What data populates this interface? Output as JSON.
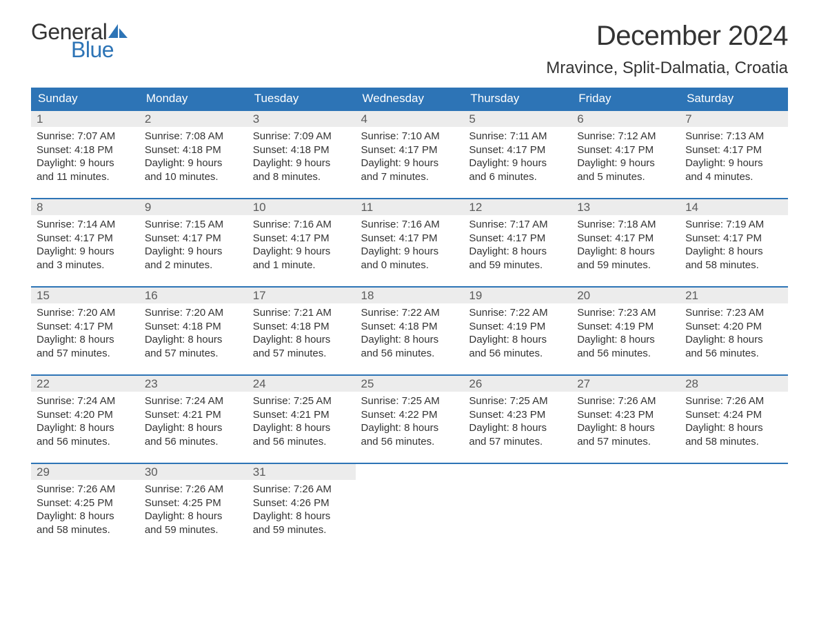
{
  "logo": {
    "text_general": "General",
    "text_blue": "Blue",
    "sail_color": "#2d74b6"
  },
  "header": {
    "month_title": "December 2024",
    "location": "Mravince, Split-Dalmatia, Croatia"
  },
  "colors": {
    "header_bg": "#2d74b6",
    "header_text": "#ffffff",
    "daynum_bg": "#ececec",
    "daynum_text": "#5b5b5b",
    "body_text": "#333333",
    "week_border": "#2d74b6",
    "page_bg": "#ffffff"
  },
  "typography": {
    "month_title_fontsize": 40,
    "location_fontsize": 24,
    "day_header_fontsize": 17,
    "daynum_fontsize": 17,
    "content_fontsize": 15,
    "logo_fontsize": 32
  },
  "calendar": {
    "type": "table",
    "day_headers": [
      "Sunday",
      "Monday",
      "Tuesday",
      "Wednesday",
      "Thursday",
      "Friday",
      "Saturday"
    ],
    "labels": {
      "sunrise": "Sunrise:",
      "sunset": "Sunset:",
      "daylight": "Daylight:"
    },
    "weeks": [
      [
        {
          "day": "1",
          "sunrise": "7:07 AM",
          "sunset": "4:18 PM",
          "daylight_l1": "9 hours",
          "daylight_l2": "and 11 minutes."
        },
        {
          "day": "2",
          "sunrise": "7:08 AM",
          "sunset": "4:18 PM",
          "daylight_l1": "9 hours",
          "daylight_l2": "and 10 minutes."
        },
        {
          "day": "3",
          "sunrise": "7:09 AM",
          "sunset": "4:18 PM",
          "daylight_l1": "9 hours",
          "daylight_l2": "and 8 minutes."
        },
        {
          "day": "4",
          "sunrise": "7:10 AM",
          "sunset": "4:17 PM",
          "daylight_l1": "9 hours",
          "daylight_l2": "and 7 minutes."
        },
        {
          "day": "5",
          "sunrise": "7:11 AM",
          "sunset": "4:17 PM",
          "daylight_l1": "9 hours",
          "daylight_l2": "and 6 minutes."
        },
        {
          "day": "6",
          "sunrise": "7:12 AM",
          "sunset": "4:17 PM",
          "daylight_l1": "9 hours",
          "daylight_l2": "and 5 minutes."
        },
        {
          "day": "7",
          "sunrise": "7:13 AM",
          "sunset": "4:17 PM",
          "daylight_l1": "9 hours",
          "daylight_l2": "and 4 minutes."
        }
      ],
      [
        {
          "day": "8",
          "sunrise": "7:14 AM",
          "sunset": "4:17 PM",
          "daylight_l1": "9 hours",
          "daylight_l2": "and 3 minutes."
        },
        {
          "day": "9",
          "sunrise": "7:15 AM",
          "sunset": "4:17 PM",
          "daylight_l1": "9 hours",
          "daylight_l2": "and 2 minutes."
        },
        {
          "day": "10",
          "sunrise": "7:16 AM",
          "sunset": "4:17 PM",
          "daylight_l1": "9 hours",
          "daylight_l2": "and 1 minute."
        },
        {
          "day": "11",
          "sunrise": "7:16 AM",
          "sunset": "4:17 PM",
          "daylight_l1": "9 hours",
          "daylight_l2": "and 0 minutes."
        },
        {
          "day": "12",
          "sunrise": "7:17 AM",
          "sunset": "4:17 PM",
          "daylight_l1": "8 hours",
          "daylight_l2": "and 59 minutes."
        },
        {
          "day": "13",
          "sunrise": "7:18 AM",
          "sunset": "4:17 PM",
          "daylight_l1": "8 hours",
          "daylight_l2": "and 59 minutes."
        },
        {
          "day": "14",
          "sunrise": "7:19 AM",
          "sunset": "4:17 PM",
          "daylight_l1": "8 hours",
          "daylight_l2": "and 58 minutes."
        }
      ],
      [
        {
          "day": "15",
          "sunrise": "7:20 AM",
          "sunset": "4:17 PM",
          "daylight_l1": "8 hours",
          "daylight_l2": "and 57 minutes."
        },
        {
          "day": "16",
          "sunrise": "7:20 AM",
          "sunset": "4:18 PM",
          "daylight_l1": "8 hours",
          "daylight_l2": "and 57 minutes."
        },
        {
          "day": "17",
          "sunrise": "7:21 AM",
          "sunset": "4:18 PM",
          "daylight_l1": "8 hours",
          "daylight_l2": "and 57 minutes."
        },
        {
          "day": "18",
          "sunrise": "7:22 AM",
          "sunset": "4:18 PM",
          "daylight_l1": "8 hours",
          "daylight_l2": "and 56 minutes."
        },
        {
          "day": "19",
          "sunrise": "7:22 AM",
          "sunset": "4:19 PM",
          "daylight_l1": "8 hours",
          "daylight_l2": "and 56 minutes."
        },
        {
          "day": "20",
          "sunrise": "7:23 AM",
          "sunset": "4:19 PM",
          "daylight_l1": "8 hours",
          "daylight_l2": "and 56 minutes."
        },
        {
          "day": "21",
          "sunrise": "7:23 AM",
          "sunset": "4:20 PM",
          "daylight_l1": "8 hours",
          "daylight_l2": "and 56 minutes."
        }
      ],
      [
        {
          "day": "22",
          "sunrise": "7:24 AM",
          "sunset": "4:20 PM",
          "daylight_l1": "8 hours",
          "daylight_l2": "and 56 minutes."
        },
        {
          "day": "23",
          "sunrise": "7:24 AM",
          "sunset": "4:21 PM",
          "daylight_l1": "8 hours",
          "daylight_l2": "and 56 minutes."
        },
        {
          "day": "24",
          "sunrise": "7:25 AM",
          "sunset": "4:21 PM",
          "daylight_l1": "8 hours",
          "daylight_l2": "and 56 minutes."
        },
        {
          "day": "25",
          "sunrise": "7:25 AM",
          "sunset": "4:22 PM",
          "daylight_l1": "8 hours",
          "daylight_l2": "and 56 minutes."
        },
        {
          "day": "26",
          "sunrise": "7:25 AM",
          "sunset": "4:23 PM",
          "daylight_l1": "8 hours",
          "daylight_l2": "and 57 minutes."
        },
        {
          "day": "27",
          "sunrise": "7:26 AM",
          "sunset": "4:23 PM",
          "daylight_l1": "8 hours",
          "daylight_l2": "and 57 minutes."
        },
        {
          "day": "28",
          "sunrise": "7:26 AM",
          "sunset": "4:24 PM",
          "daylight_l1": "8 hours",
          "daylight_l2": "and 58 minutes."
        }
      ],
      [
        {
          "day": "29",
          "sunrise": "7:26 AM",
          "sunset": "4:25 PM",
          "daylight_l1": "8 hours",
          "daylight_l2": "and 58 minutes."
        },
        {
          "day": "30",
          "sunrise": "7:26 AM",
          "sunset": "4:25 PM",
          "daylight_l1": "8 hours",
          "daylight_l2": "and 59 minutes."
        },
        {
          "day": "31",
          "sunrise": "7:26 AM",
          "sunset": "4:26 PM",
          "daylight_l1": "8 hours",
          "daylight_l2": "and 59 minutes."
        },
        null,
        null,
        null,
        null
      ]
    ]
  }
}
